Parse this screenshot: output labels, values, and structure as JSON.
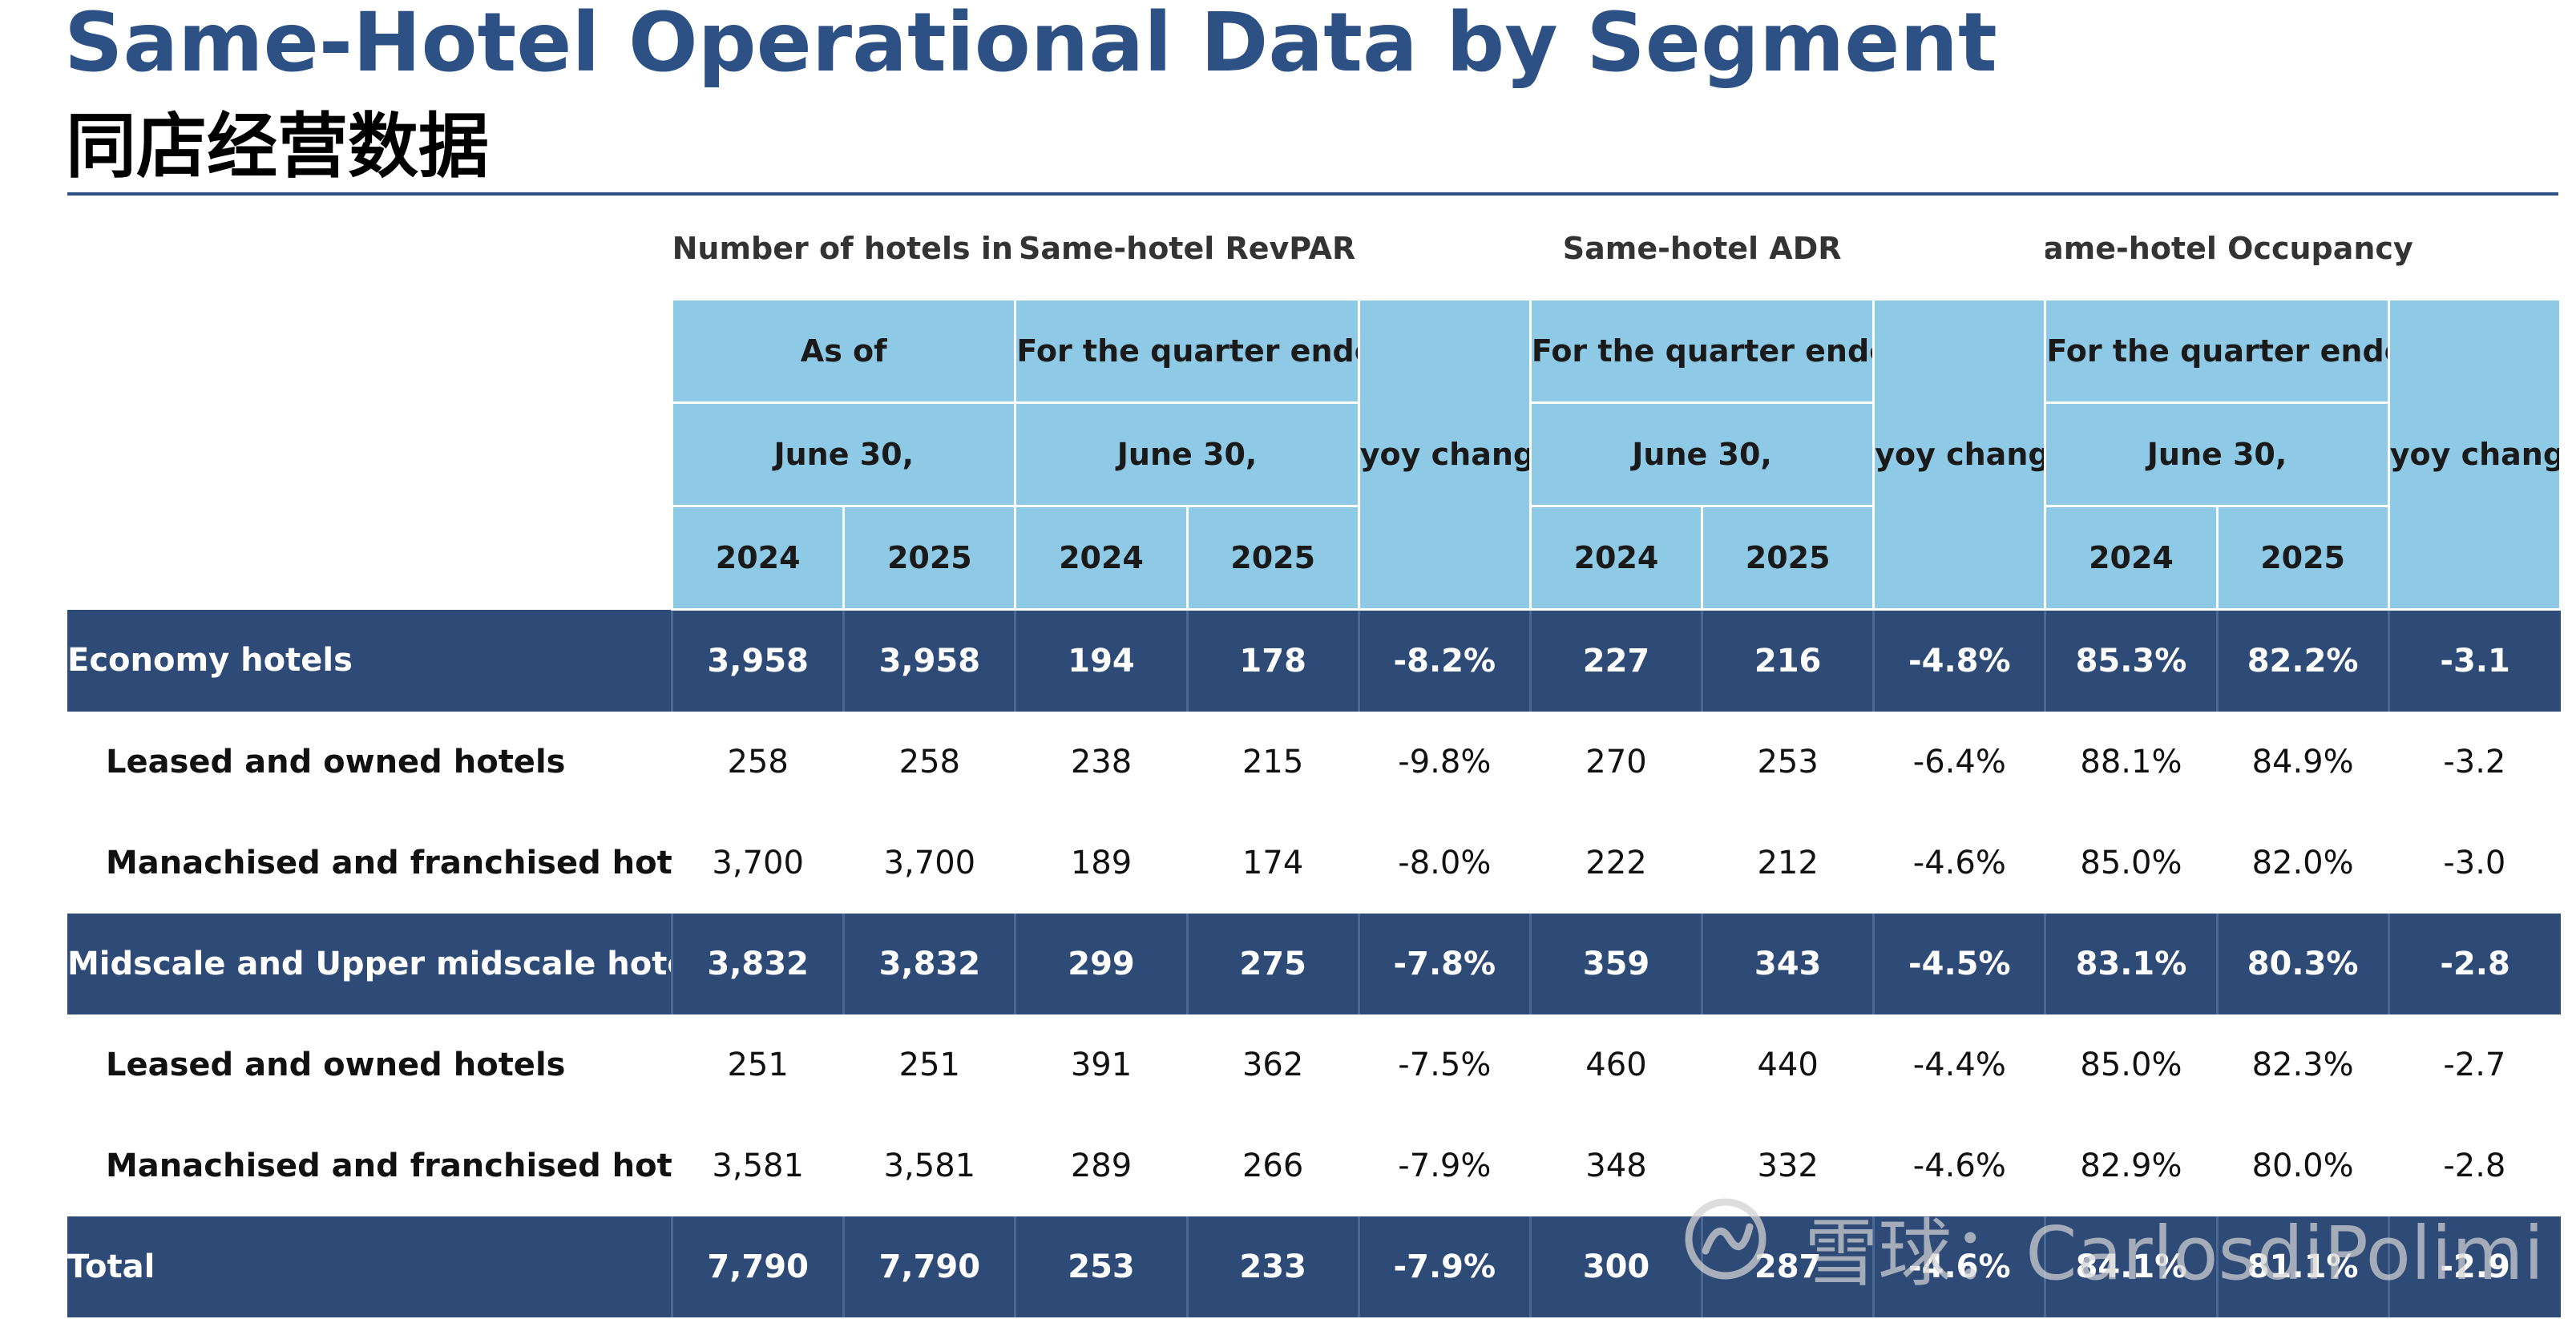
{
  "title": "Same-Hotel Operational Data by Segment",
  "subtitle": "同店经营数据",
  "header": {
    "hotels_group": "Number of hotels in operation",
    "revpar_group": "Same-hotel RevPAR",
    "adr_group": "Same-hotel ADR",
    "occ_group": "Same-hotel Occupancy",
    "as_of": "As of",
    "quarter_ended": "For the quarter ended",
    "june30": "June 30,",
    "yoy_change": "yoy change",
    "yoy_change_pp": "yoy change (p.p.)",
    "y2024": "2024",
    "y2025": "2025"
  },
  "rows": [
    {
      "type": "segment",
      "label": "Economy hotels",
      "cells": [
        "3,958",
        "3,958",
        "194",
        "178",
        "-8.2%",
        "227",
        "216",
        "-4.8%",
        "85.3%",
        "82.2%",
        "-3.1"
      ]
    },
    {
      "type": "sub",
      "label": "Leased and owned hotels",
      "cells": [
        "258",
        "258",
        "238",
        "215",
        "-9.8%",
        "270",
        "253",
        "-6.4%",
        "88.1%",
        "84.9%",
        "-3.2"
      ]
    },
    {
      "type": "sub",
      "label": "Manachised and franchised hotels",
      "cells": [
        "3,700",
        "3,700",
        "189",
        "174",
        "-8.0%",
        "222",
        "212",
        "-4.6%",
        "85.0%",
        "82.0%",
        "-3.0"
      ]
    },
    {
      "type": "segment",
      "label": "Midscale and Upper midscale hotels",
      "cells": [
        "3,832",
        "3,832",
        "299",
        "275",
        "-7.8%",
        "359",
        "343",
        "-4.5%",
        "83.1%",
        "80.3%",
        "-2.8"
      ]
    },
    {
      "type": "sub",
      "label": "Leased and owned hotels",
      "cells": [
        "251",
        "251",
        "391",
        "362",
        "-7.5%",
        "460",
        "440",
        "-4.4%",
        "85.0%",
        "82.3%",
        "-2.7"
      ]
    },
    {
      "type": "sub",
      "label": "Manachised and franchised hotels",
      "cells": [
        "3,581",
        "3,581",
        "289",
        "266",
        "-7.9%",
        "348",
        "332",
        "-4.6%",
        "82.9%",
        "80.0%",
        "-2.8"
      ]
    },
    {
      "type": "segment",
      "label": "Total",
      "cells": [
        "7,790",
        "7,790",
        "253",
        "233",
        "-7.9%",
        "300",
        "287",
        "-4.6%",
        "84.1%",
        "81.1%",
        "-2.9"
      ]
    }
  ],
  "watermark": "雪球：CarlosdiPolimi",
  "colors": {
    "accent": "#2E5185",
    "segment_bg": "#2E4A76",
    "header_bg": "#8ECAE6"
  }
}
